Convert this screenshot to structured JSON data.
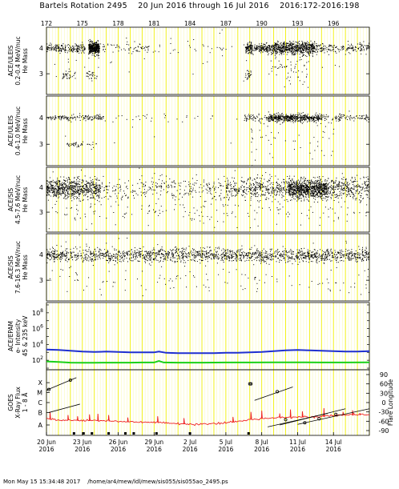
{
  "header": {
    "title": "Bartels Rotation 2495    20 Jun 2016 through 16 Jul 2016    2016:172-2016:198"
  },
  "footer": {
    "text": "Mon May 15 15:34:48 2017    /home/ar4/mew/ldl/mew/sis055/sis055ao_2495.ps"
  },
  "chart_data": [
    {
      "type": "scatter",
      "panel": "uleis-low",
      "ylabel": [
        "ACE/ULEIS",
        "0.2-0.4 MeV/nuc",
        "He Mass"
      ],
      "yticks": [
        3,
        4
      ],
      "ylim": [
        2.2,
        4.8
      ],
      "x_day_range": [
        172,
        199
      ],
      "series": [
        {
          "clusters": [
            {
              "x": [
                172.0,
                175.2
              ],
              "y": 4.0,
              "n": 200,
              "sx": 0,
              "sy": 0.08
            },
            {
              "x": [
                175.5,
                176.4
              ],
              "y": 4.0,
              "n": 420,
              "sx": 0,
              "sy": 0.11
            },
            {
              "x": [
                176.3,
                181.0
              ],
              "y": 4.0,
              "n": 70,
              "sx": 0,
              "sy": 0.1
            },
            {
              "x": [
                181.0,
                188.5
              ],
              "y": 4.0,
              "n": 30,
              "sx": 0,
              "sy": 0.12
            },
            {
              "x": [
                188.6,
                189.2
              ],
              "y": 4.0,
              "n": 110,
              "sx": 0,
              "sy": 0.1
            },
            {
              "x": [
                189.3,
                191.0
              ],
              "y": 4.0,
              "n": 180,
              "sx": 0,
              "sy": 0.09
            },
            {
              "x": [
                191.0,
                194.4
              ],
              "y": 4.0,
              "n": 620,
              "sx": 0,
              "sy": 0.12
            },
            {
              "x": [
                194.4,
                199.0
              ],
              "y": 4.0,
              "n": 180,
              "sx": 0,
              "sy": 0.1
            },
            {
              "x": [
                173.3,
                174.4
              ],
              "y": 2.95,
              "n": 35,
              "sx": 0,
              "sy": 0.1
            },
            {
              "x": [
                175.3,
                176.2
              ],
              "y": 2.95,
              "n": 30,
              "sx": 0,
              "sy": 0.1
            },
            {
              "x": [
                188.6,
                189.1
              ],
              "y": 2.95,
              "n": 25,
              "sx": 0,
              "sy": 0.1
            },
            {
              "x": [
                190.5,
                194.0
              ],
              "y": 3.2,
              "n": 60,
              "sx": 0,
              "sy": 0.4
            },
            {
              "x": [
                172.0,
                199.0
              ],
              "y": 3.5,
              "n": 40,
              "sx": 0,
              "sy": 0.5
            }
          ]
        }
      ]
    },
    {
      "type": "scatter",
      "panel": "uleis-high",
      "ylabel": [
        "ACE/ULEIS",
        "0.4-1.0 MeV/nuc",
        "He Mass"
      ],
      "yticks": [
        3,
        4
      ],
      "ylim": [
        2.2,
        4.8
      ],
      "x_day_range": [
        172,
        199
      ],
      "series": [
        {
          "clusters": [
            {
              "x": [
                172.0,
                176.8
              ],
              "y": 4.0,
              "n": 150,
              "sx": 0,
              "sy": 0.05
            },
            {
              "x": [
                176.8,
                186.0
              ],
              "y": 4.0,
              "n": 25,
              "sx": 0,
              "sy": 0.08
            },
            {
              "x": [
                188.5,
                190.5
              ],
              "y": 4.0,
              "n": 60,
              "sx": 0,
              "sy": 0.06
            },
            {
              "x": [
                190.5,
                194.8
              ],
              "y": 4.0,
              "n": 520,
              "sx": 0,
              "sy": 0.07
            },
            {
              "x": [
                194.8,
                199.0
              ],
              "y": 4.0,
              "n": 110,
              "sx": 0,
              "sy": 0.07
            },
            {
              "x": [
                173.4,
                176.2
              ],
              "y": 3.0,
              "n": 40,
              "sx": 0,
              "sy": 0.05
            },
            {
              "x": [
                189.0,
                196.0
              ],
              "y": 3.2,
              "n": 50,
              "sx": 0,
              "sy": 0.45
            },
            {
              "x": [
                172.0,
                199.0
              ],
              "y": 3.5,
              "n": 20,
              "sx": 0,
              "sy": 0.5
            }
          ]
        }
      ]
    },
    {
      "type": "scatter",
      "panel": "sis-low",
      "ylabel": [
        "ACE/SIS",
        "4.5-7.6 MeV/nuc",
        "He Mass"
      ],
      "yticks": [
        3,
        4
      ],
      "ylim": [
        2.2,
        4.8
      ],
      "x_day_range": [
        172,
        199
      ],
      "series": [
        {
          "clusters": [
            {
              "x": [
                172.0,
                176.5
              ],
              "y": 3.95,
              "n": 700,
              "sx": 0,
              "sy": 0.2
            },
            {
              "x": [
                176.5,
                187.0
              ],
              "y": 3.95,
              "n": 260,
              "sx": 0,
              "sy": 0.25
            },
            {
              "x": [
                187.0,
                192.2
              ],
              "y": 3.95,
              "n": 380,
              "sx": 0,
              "sy": 0.22
            },
            {
              "x": [
                192.2,
                195.4
              ],
              "y": 3.95,
              "n": 900,
              "sx": 0,
              "sy": 0.18
            },
            {
              "x": [
                195.4,
                199.0
              ],
              "y": 3.95,
              "n": 320,
              "sx": 0,
              "sy": 0.22
            },
            {
              "x": [
                172.0,
                199.0
              ],
              "y": 3.0,
              "n": 120,
              "sx": 0,
              "sy": 0.25
            },
            {
              "x": [
                172.0,
                199.0
              ],
              "y": 3.5,
              "n": 100,
              "sx": 0,
              "sy": 0.6
            }
          ]
        }
      ]
    },
    {
      "type": "scatter",
      "panel": "sis-high",
      "ylabel": [
        "ACE/SIS",
        "7.6-16.3 MeV/nuc",
        "He Mass"
      ],
      "yticks": [
        3,
        4
      ],
      "ylim": [
        2.2,
        4.8
      ],
      "x_day_range": [
        172,
        199
      ],
      "series": [
        {
          "clusters": [
            {
              "x": [
                172.0,
                199.0
              ],
              "y": 3.98,
              "n": 1700,
              "sx": 0,
              "sy": 0.13
            },
            {
              "x": [
                172.0,
                199.0
              ],
              "y": 3.0,
              "n": 90,
              "sx": 0,
              "sy": 0.22
            },
            {
              "x": [
                172.0,
                199.0
              ],
              "y": 3.5,
              "n": 60,
              "sx": 0,
              "sy": 0.6
            }
          ]
        }
      ]
    },
    {
      "type": "line",
      "panel": "epam",
      "ylabel": [
        "ACE/EPAM",
        "e- Intensity",
        "45 & 235 keV"
      ],
      "yscale": "log",
      "ytick_labels": [
        "10^8",
        "10^6",
        "10^4",
        "10^2"
      ],
      "yticks_exp": [
        8,
        6,
        4,
        2
      ],
      "ylim_exp": [
        0.8,
        9.3
      ],
      "x_day_range": [
        172,
        199
      ],
      "series": [
        {
          "name": "45 keV",
          "color": "#1f2fd0",
          "points": [
            [
              172.0,
              3.35
            ],
            [
              173.0,
              3.3
            ],
            [
              174.0,
              3.2
            ],
            [
              175.0,
              3.1
            ],
            [
              176.0,
              3.05
            ],
            [
              177.0,
              3.1
            ],
            [
              178.0,
              3.05
            ],
            [
              179.0,
              3.0
            ],
            [
              180.0,
              3.0
            ],
            [
              181.0,
              3.0
            ],
            [
              181.4,
              3.1
            ],
            [
              182.0,
              2.95
            ],
            [
              183.0,
              2.9
            ],
            [
              184.0,
              2.9
            ],
            [
              185.0,
              2.9
            ],
            [
              186.0,
              2.9
            ],
            [
              187.0,
              2.95
            ],
            [
              188.0,
              2.95
            ],
            [
              189.0,
              3.0
            ],
            [
              190.0,
              3.05
            ],
            [
              191.0,
              3.15
            ],
            [
              192.0,
              3.25
            ],
            [
              193.0,
              3.3
            ],
            [
              194.0,
              3.25
            ],
            [
              195.0,
              3.2
            ],
            [
              196.0,
              3.15
            ],
            [
              197.0,
              3.1
            ],
            [
              198.0,
              3.1
            ],
            [
              199.0,
              3.15
            ]
          ]
        },
        {
          "name": "235 keV",
          "color": "#19d019",
          "points": [
            [
              172.0,
              1.85
            ],
            [
              173.0,
              1.78
            ],
            [
              174.0,
              1.7
            ],
            [
              175.0,
              1.68
            ],
            [
              176.0,
              1.68
            ],
            [
              177.0,
              1.7
            ],
            [
              178.0,
              1.7
            ],
            [
              179.0,
              1.7
            ],
            [
              180.0,
              1.72
            ],
            [
              181.0,
              1.72
            ],
            [
              181.4,
              1.9
            ],
            [
              181.8,
              1.72
            ],
            [
              183.0,
              1.7
            ],
            [
              185.0,
              1.7
            ],
            [
              187.0,
              1.72
            ],
            [
              189.0,
              1.72
            ],
            [
              191.0,
              1.73
            ],
            [
              193.0,
              1.74
            ],
            [
              195.0,
              1.72
            ],
            [
              197.0,
              1.72
            ],
            [
              199.0,
              1.74
            ]
          ]
        }
      ]
    },
    {
      "type": "line",
      "panel": "goes",
      "ylabel": [
        "GOES",
        "X-Ray Flux",
        "1 - 8 Å"
      ],
      "yclass_labels": [
        "X",
        "M",
        "C",
        "B",
        "A"
      ],
      "right_axis_label": "Flare Longitude",
      "right_ticks": [
        "90",
        "60",
        "30",
        "0",
        "-30",
        "-60",
        "-90"
      ],
      "right_ylim": [
        -90,
        90
      ],
      "xtick_labels": [
        "20 Jun\n2016",
        "23 Jun\n2016",
        "26 Jun\n2016",
        "29 Jun\n2016",
        "2 Jul\n2016",
        "5 Jul\n2016",
        "8 Jul\n2016",
        "11 Jul\n2016",
        "14 Jul\n2016"
      ],
      "xtick_days": [
        172,
        175,
        178,
        181,
        184,
        187,
        190,
        193,
        196
      ],
      "top_ticks": [
        "172",
        "175",
        "178",
        "181",
        "184",
        "187",
        "190",
        "193",
        "196"
      ],
      "x_day_range": [
        172,
        199
      ],
      "series": [
        {
          "name": "x-ray flux",
          "color": "#ee2020",
          "points": [
            [
              172.0,
              -52
            ],
            [
              173.0,
              -56
            ],
            [
              174.0,
              -57
            ],
            [
              175.0,
              -58
            ],
            [
              176.0,
              -57
            ],
            [
              177.0,
              -58
            ],
            [
              178.0,
              -60
            ],
            [
              179.0,
              -62
            ],
            [
              180.0,
              -64
            ],
            [
              181.0,
              -63
            ],
            [
              182.0,
              -66
            ],
            [
              183.0,
              -68
            ],
            [
              184.0,
              -70
            ],
            [
              185.0,
              -70
            ],
            [
              186.0,
              -68
            ],
            [
              187.0,
              -66
            ],
            [
              188.0,
              -60
            ],
            [
              189.0,
              -55
            ],
            [
              190.0,
              -52
            ],
            [
              191.0,
              -48
            ],
            [
              192.0,
              -47
            ],
            [
              193.0,
              -46
            ],
            [
              194.0,
              -46
            ],
            [
              195.0,
              -45
            ],
            [
              196.0,
              -42
            ],
            [
              197.0,
              -40
            ],
            [
              198.0,
              -38
            ],
            [
              199.0,
              -40
            ]
          ],
          "spikes": [
            [
              172.3,
              -30
            ],
            [
              173.8,
              -40
            ],
            [
              174.6,
              -44
            ],
            [
              175.6,
              -38
            ],
            [
              176.3,
              -36
            ],
            [
              177.2,
              -40
            ],
            [
              178.8,
              -48
            ],
            [
              181.3,
              -44
            ],
            [
              183.5,
              -50
            ],
            [
              187.6,
              -46
            ],
            [
              189.1,
              -30
            ],
            [
              190.0,
              -26
            ],
            [
              191.5,
              -35
            ],
            [
              192.4,
              -22
            ],
            [
              193.4,
              -28
            ],
            [
              195.2,
              -18
            ],
            [
              196.8,
              -30
            ],
            [
              197.6,
              -25
            ],
            [
              198.2,
              -34
            ]
          ]
        },
        {
          "name": "flare longitudes",
          "color": "#000000",
          "segments": [
            [
              [
                172.0,
                40
              ],
              [
                174.5,
                80
              ]
            ],
            [
              [
                172.2,
                -32
              ],
              [
                174.8,
                -5
              ]
            ],
            [
              [
                189.4,
                7
              ],
              [
                192.6,
                50
              ]
            ],
            [
              [
                190.5,
                -78
              ],
              [
                195.5,
                -35
              ]
            ],
            [
              [
                191.5,
                -72
              ],
              [
                197.0,
                -20
              ]
            ],
            [
              [
                193.0,
                -70
              ],
              [
                199.0,
                -20
              ]
            ]
          ],
          "markers": [
            [
              172.2,
              42
            ],
            [
              174.0,
              72
            ],
            [
              189.0,
              60
            ],
            [
              189.1,
              60
            ],
            [
              191.3,
              35
            ],
            [
              192.0,
              -55
            ],
            [
              193.6,
              -65
            ],
            [
              194.8,
              -52
            ],
            [
              196.2,
              -38
            ]
          ]
        }
      ],
      "flare_marks_row": [
        174.3,
        175.1,
        175.8,
        177.2,
        178.6,
        179.3,
        181.2,
        184.0,
        188.9
      ]
    }
  ]
}
